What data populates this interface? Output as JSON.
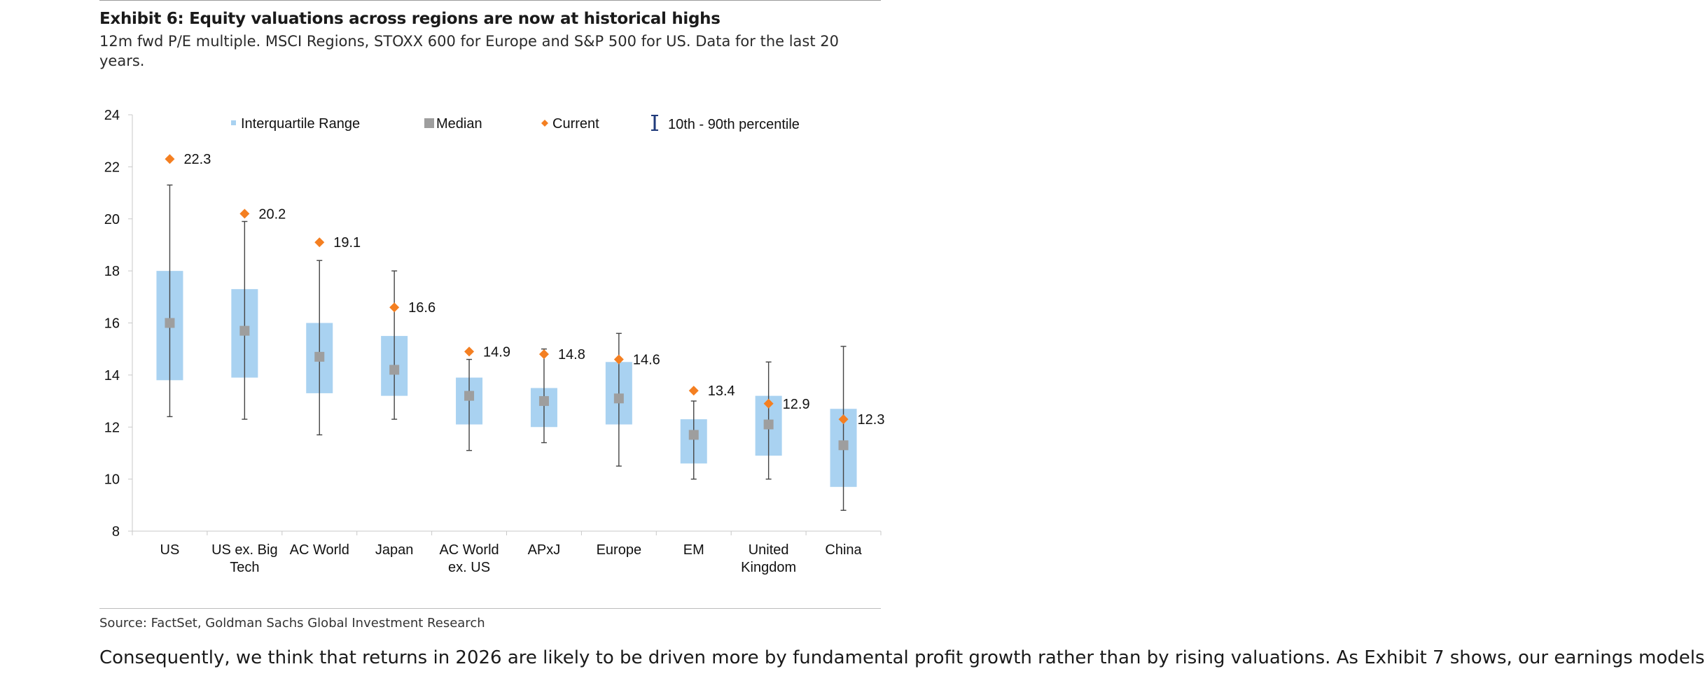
{
  "header": {
    "title": "Exhibit 6: Equity valuations across regions are now at historical highs",
    "subtitle": "12m fwd P/E multiple. MSCI Regions, STOXX 600 for Europe and S&P 500 for US. Data for the last 20 years."
  },
  "footer": {
    "source": "Source: FactSet, Goldman Sachs Global Investment Research",
    "body_text": "Consequently, we think that returns in 2026 are likely to be driven more by fundamental profit growth rather than by rising valuations. As Exhibit 7 shows, our earnings models"
  },
  "chart_data": {
    "type": "box",
    "title": "",
    "xlabel": "",
    "ylabel": "",
    "ylim": [
      8,
      24
    ],
    "yticks": [
      8,
      10,
      12,
      14,
      16,
      18,
      20,
      22,
      24
    ],
    "grid": false,
    "legend_position": "top",
    "legend": {
      "iqr": "Interquartile Range",
      "median": "Median",
      "current": "Current",
      "whisker": "10th - 90th percentile"
    },
    "colors": {
      "iqr": "#a9d2f1",
      "median": "#9e9e9e",
      "current": "#f47f21",
      "whisker": "#444444",
      "whisker_legend": "#1f3a7a",
      "axis": "#c8c8c8"
    },
    "categories": [
      {
        "label": [
          "US"
        ],
        "p10": 12.4,
        "q1": 13.8,
        "median": 16.0,
        "q3": 18.0,
        "p90": 21.3,
        "current": 22.3,
        "current_label": "22.3"
      },
      {
        "label": [
          "US ex. Big",
          "Tech"
        ],
        "p10": 12.3,
        "q1": 13.9,
        "median": 15.7,
        "q3": 17.3,
        "p90": 19.9,
        "current": 20.2,
        "current_label": "20.2"
      },
      {
        "label": [
          "AC World"
        ],
        "p10": 11.7,
        "q1": 13.3,
        "median": 14.7,
        "q3": 16.0,
        "p90": 18.4,
        "current": 19.1,
        "current_label": "19.1"
      },
      {
        "label": [
          "Japan"
        ],
        "p10": 12.3,
        "q1": 13.2,
        "median": 14.2,
        "q3": 15.5,
        "p90": 18.0,
        "current": 16.6,
        "current_label": "16.6"
      },
      {
        "label": [
          "AC World",
          "ex. US"
        ],
        "p10": 11.1,
        "q1": 12.1,
        "median": 13.2,
        "q3": 13.9,
        "p90": 14.6,
        "current": 14.9,
        "current_label": "14.9"
      },
      {
        "label": [
          "APxJ"
        ],
        "p10": 11.4,
        "q1": 12.0,
        "median": 13.0,
        "q3": 13.5,
        "p90": 15.0,
        "current": 14.8,
        "current_label": "14.8"
      },
      {
        "label": [
          "Europe"
        ],
        "p10": 10.5,
        "q1": 12.1,
        "median": 13.1,
        "q3": 14.5,
        "p90": 15.6,
        "current": 14.6,
        "current_label": "14.6"
      },
      {
        "label": [
          "EM"
        ],
        "p10": 10.0,
        "q1": 10.6,
        "median": 11.7,
        "q3": 12.3,
        "p90": 13.0,
        "current": 13.4,
        "current_label": "13.4"
      },
      {
        "label": [
          "United",
          "Kingdom"
        ],
        "p10": 10.0,
        "q1": 10.9,
        "median": 12.1,
        "q3": 13.2,
        "p90": 14.5,
        "current": 12.9,
        "current_label": "12.9"
      },
      {
        "label": [
          "China"
        ],
        "p10": 8.8,
        "q1": 9.7,
        "median": 11.3,
        "q3": 12.7,
        "p90": 15.1,
        "current": 12.3,
        "current_label": "12.3"
      }
    ]
  }
}
